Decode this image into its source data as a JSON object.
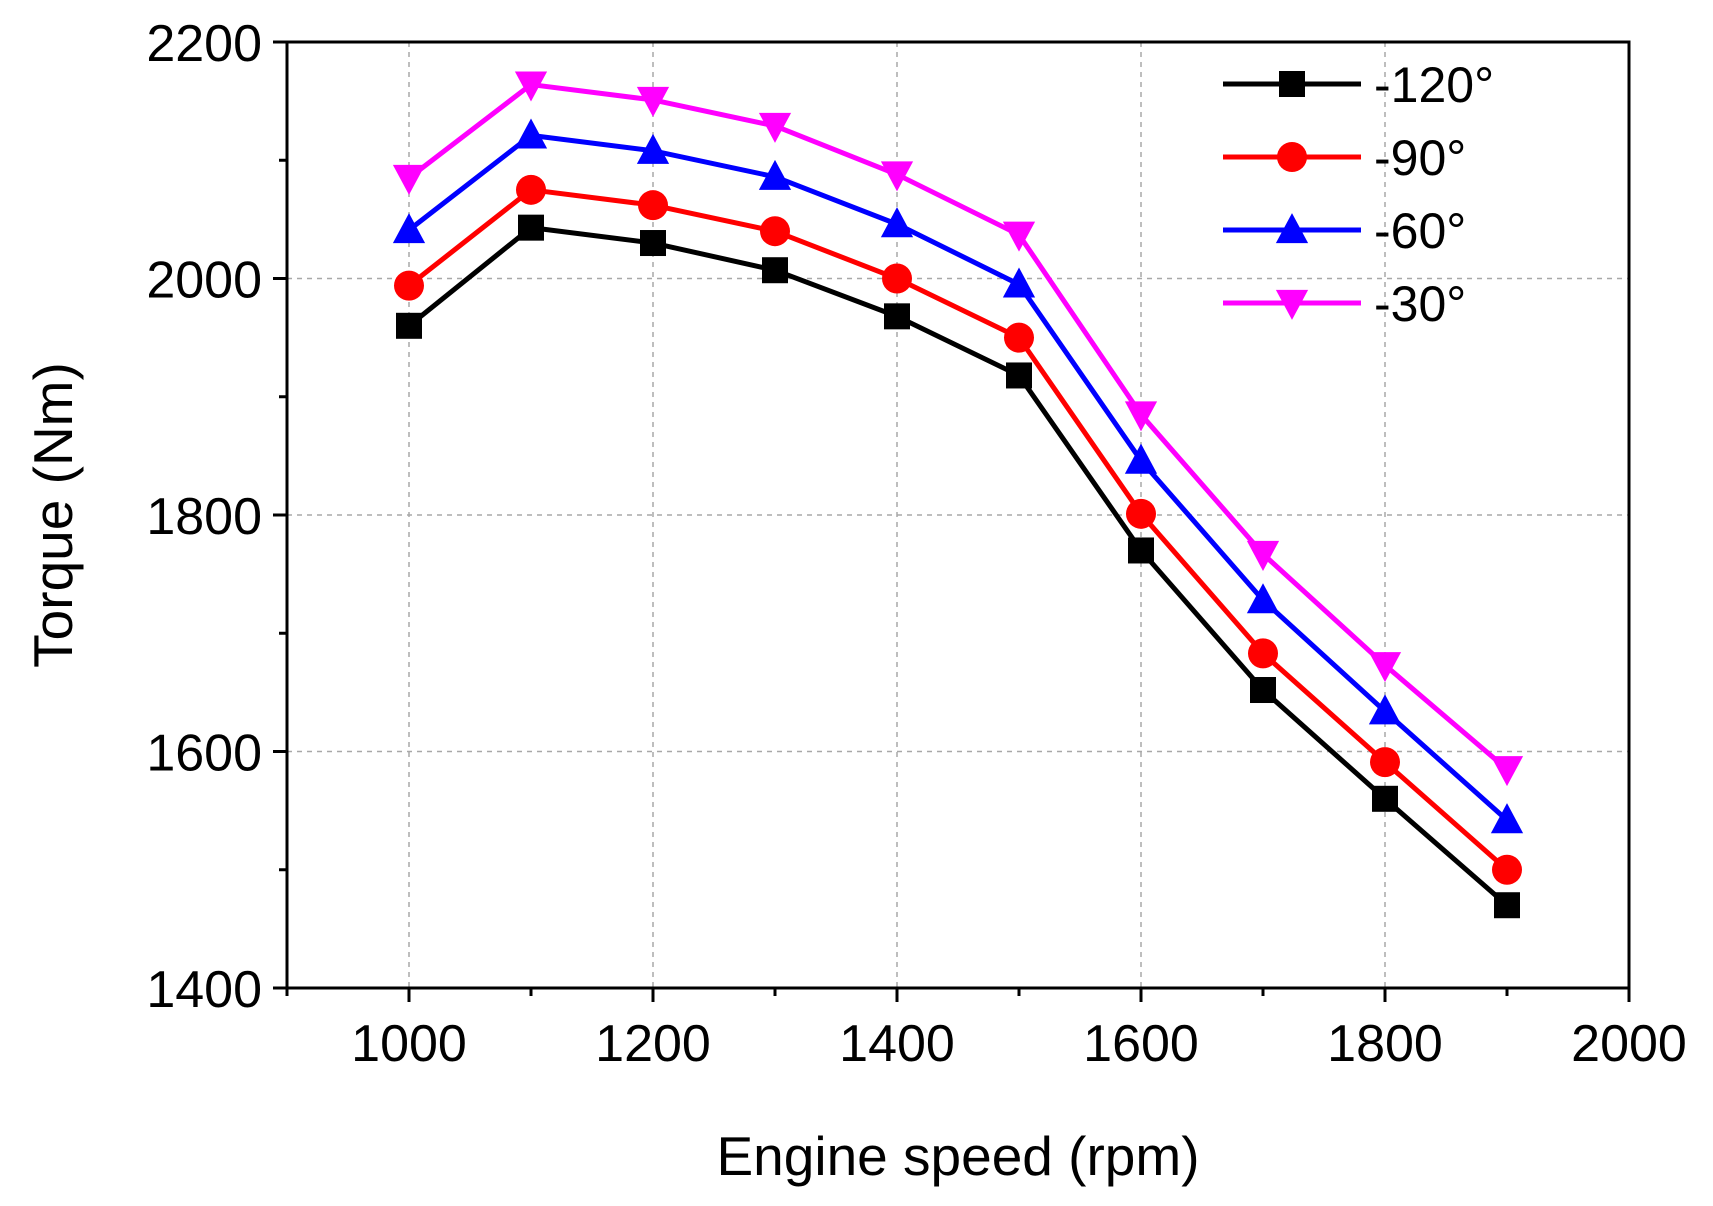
{
  "chart_data": {
    "type": "line",
    "title": "",
    "xlabel": "Engine speed (rpm)",
    "ylabel": "Torque (Nm)",
    "xlim": [
      900,
      2000
    ],
    "ylim": [
      1400,
      2200
    ],
    "x_ticks": [
      1000,
      1200,
      1400,
      1600,
      1800,
      2000
    ],
    "x_ticks_minor": [
      900,
      1100,
      1300,
      1500,
      1700,
      1900
    ],
    "y_ticks": [
      1400,
      1600,
      1800,
      2000,
      2200
    ],
    "y_ticks_minor": [
      1500,
      1700,
      1900,
      2100
    ],
    "grid": true,
    "legend_position": "top-right",
    "x": [
      1000,
      1100,
      1200,
      1300,
      1400,
      1500,
      1600,
      1700,
      1800,
      1900
    ],
    "series": [
      {
        "name": "-120°",
        "color": "#000000",
        "marker": "square",
        "values": [
          1960,
          2043,
          2030,
          2007,
          1968,
          1918,
          1770,
          1652,
          1560,
          1470
        ]
      },
      {
        "name": "-90°",
        "color": "#ff0000",
        "marker": "circle",
        "values": [
          1994,
          2075,
          2062,
          2040,
          2000,
          1950,
          1801,
          1683,
          1591,
          1500
        ]
      },
      {
        "name": "-60°",
        "color": "#0000ff",
        "marker": "triangle-up",
        "values": [
          2041,
          2121,
          2108,
          2086,
          2046,
          1995,
          1846,
          1728,
          1634,
          1542
        ]
      },
      {
        "name": "-30°",
        "color": "#ff00ff",
        "marker": "triangle-down",
        "values": [
          2085,
          2164,
          2151,
          2129,
          2088,
          2037,
          1885,
          1767,
          1673,
          1585
        ]
      }
    ]
  }
}
